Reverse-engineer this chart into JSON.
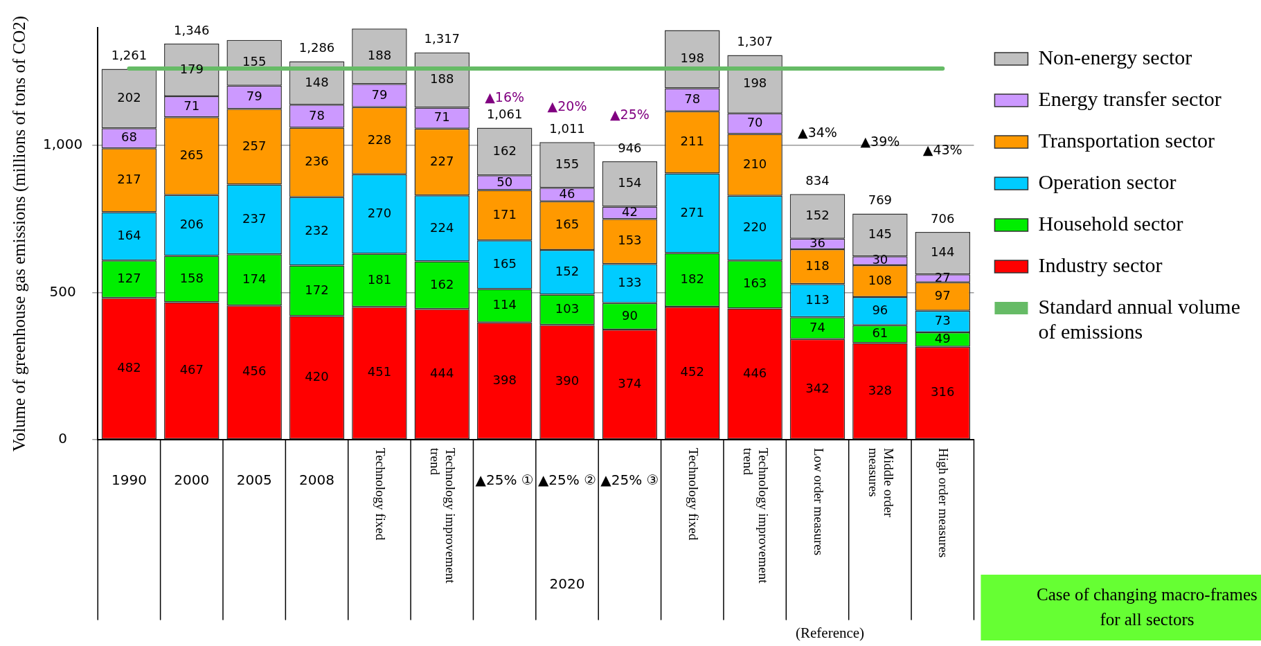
{
  "chart_data": {
    "type": "bar",
    "stacked": true,
    "ylabel": "Volume of greenhouse gas emissions (millions of tons of CO2)",
    "categories": [
      "1990",
      "2000",
      "2005",
      "2008",
      "Technology fixed",
      "Technology improvement trend",
      "▲25% ①",
      "▲25% ②",
      "▲25% ③",
      "Technology fixed",
      "Technology improvement trend",
      "Low order measures",
      "Middle order measures",
      "High order measures"
    ],
    "series": [
      {
        "name": "Industry sector",
        "color": "#ff0000",
        "values": [
          482,
          467,
          456,
          420,
          451,
          444,
          398,
          390,
          374,
          452,
          446,
          342,
          328,
          316
        ]
      },
      {
        "name": "Household sector",
        "color": "#00ee00",
        "values": [
          127,
          158,
          174,
          172,
          181,
          162,
          114,
          103,
          90,
          182,
          163,
          74,
          61,
          49
        ]
      },
      {
        "name": "Operation sector",
        "color": "#00ccff",
        "values": [
          164,
          206,
          237,
          232,
          270,
          224,
          165,
          152,
          133,
          271,
          220,
          113,
          96,
          73
        ]
      },
      {
        "name": "Transportation sector",
        "color": "#ff9900",
        "values": [
          217,
          265,
          257,
          236,
          228,
          227,
          171,
          165,
          153,
          211,
          210,
          118,
          108,
          97
        ]
      },
      {
        "name": "Energy transfer sector",
        "color": "#cc99ff",
        "values": [
          68,
          71,
          79,
          78,
          79,
          71,
          50,
          46,
          42,
          78,
          70,
          36,
          30,
          27
        ]
      },
      {
        "name": "Non-energy sector",
        "color": "#c0c0c0",
        "values": [
          202,
          179,
          155,
          148,
          188,
          188,
          162,
          155,
          154,
          198,
          198,
          152,
          145,
          144
        ]
      }
    ],
    "ref_lines": [
      {
        "axis": "y",
        "value": 1261,
        "label": "Standard annual volume of emissions",
        "color": "#66bb66"
      }
    ],
    "totals": [
      "1,261",
      "1,346",
      null,
      "1,286",
      null,
      "1,317",
      "1,061",
      "1,011",
      "946",
      null,
      "1,307",
      "834",
      "769",
      "706"
    ],
    "data_labels": true,
    "ylim": [
      0,
      1400
    ],
    "yticks": [
      0,
      500,
      {
        "value": 1000,
        "label": "1,000"
      }
    ],
    "grid": "y",
    "legend": "right",
    "annotations": [
      "▲16%",
      "▲20%",
      "▲25%",
      "▲34%",
      "▲39%",
      "▲43%",
      "2020",
      "(Reference)",
      "Case of changing macro-frames for all sectors"
    ]
  }
}
